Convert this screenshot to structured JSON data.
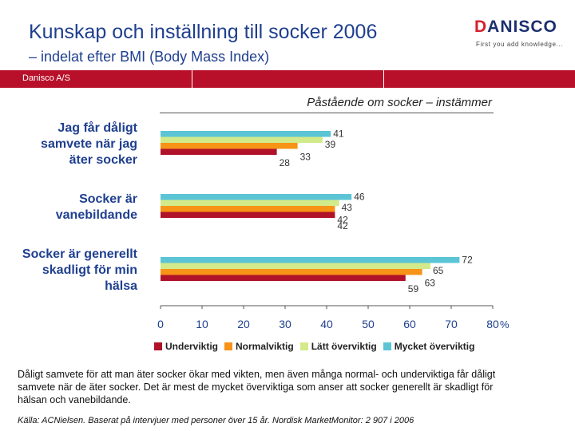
{
  "header": {
    "title": "Kunskap och inställning till socker 2006",
    "subtitle": "– indelat efter BMI (Body Mass Index)"
  },
  "logo": {
    "word_first": "D",
    "word_rest": "ANISCO",
    "tagline": "First you add knowledge..."
  },
  "band": {
    "label": "Danisco A/S",
    "color": "#b8102a"
  },
  "chart_data": {
    "type": "bar",
    "orientation": "horizontal",
    "title": "Påstående om socker – instämmer",
    "categories": [
      "Jag får dåligt samvete när jag äter socker",
      "Socker är vanebildande",
      "Socker är generellt skadligt för min hälsa"
    ],
    "category_lines": [
      [
        "Jag får dåligt",
        "samvete när jag",
        "äter socker"
      ],
      [
        "Socker är",
        "vanebildande"
      ],
      [
        "Socker är generellt",
        "skadligt för min",
        "hälsa"
      ]
    ],
    "series": [
      {
        "name": "Mycket överviktig",
        "color": "#5bc5d6",
        "values": [
          41,
          46,
          72
        ]
      },
      {
        "name": "Lätt överviktig",
        "color": "#d3ea8a",
        "values": [
          39,
          43,
          65
        ]
      },
      {
        "name": "Normalviktig",
        "color": "#f79316",
        "values": [
          33,
          42,
          63
        ]
      },
      {
        "name": "Underviktig",
        "color": "#b0122a",
        "values": [
          28,
          42,
          59
        ]
      }
    ],
    "legend_order": [
      "Underviktig",
      "Normalviktig",
      "Lätt överviktig",
      "Mycket överviktig"
    ],
    "xlim": [
      0,
      80
    ],
    "xticks": [
      0,
      10,
      20,
      30,
      40,
      50,
      60,
      70,
      80
    ],
    "xunit": "%",
    "grid": false,
    "legend_position": "bottom"
  },
  "body_text": "Dåligt samvete för att man äter socker ökar med vikten, men även många normal- och underviktiga får dåligt samvete när de äter socker. Det är mest de mycket överviktiga som anser att socker generellt är skadligt för hälsan och vanebildande.",
  "source": "Källa: ACNielsen. Baserat på intervjuer med personer över 15 år. Nordisk MarketMonitor: 2 907 i 2006"
}
